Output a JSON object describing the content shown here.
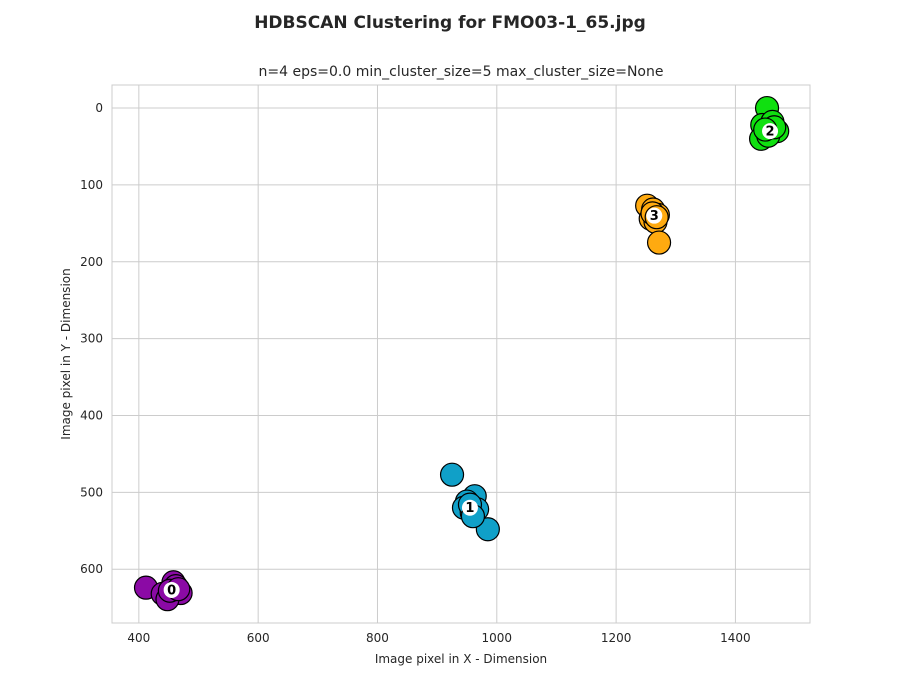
{
  "chart_data": {
    "type": "scatter",
    "title": "HDBSCAN Clustering for FMO03-1_65.jpg",
    "subtitle": "n=4 eps=0.0 min_cluster_size=5 max_cluster_size=None",
    "xlabel": "Image pixel in X - Dimension",
    "ylabel": "Image pixel in Y - Dimension",
    "xlim": [
      355,
      1525
    ],
    "ylim": [
      670,
      -30
    ],
    "y_inverted": true,
    "xticks": [
      400,
      600,
      800,
      1000,
      1200,
      1400
    ],
    "yticks": [
      0,
      100,
      200,
      300,
      400,
      500,
      600
    ],
    "grid": true,
    "series": [
      {
        "label": "0",
        "color": "#8b0aa5",
        "center": [
          455,
          627
        ],
        "points": [
          [
            412,
            624
          ],
          [
            440,
            632
          ],
          [
            458,
            617
          ],
          [
            470,
            631
          ],
          [
            448,
            639
          ],
          [
            462,
            622
          ],
          [
            452,
            628
          ],
          [
            466,
            626
          ]
        ]
      },
      {
        "label": "1",
        "color": "#10a0c8",
        "center": [
          955,
          520
        ],
        "points": [
          [
            925,
            477
          ],
          [
            963,
            505
          ],
          [
            950,
            512
          ],
          [
            945,
            520
          ],
          [
            958,
            526
          ],
          [
            967,
            522
          ],
          [
            985,
            548
          ],
          [
            955,
            516
          ],
          [
            960,
            531
          ]
        ]
      },
      {
        "label": "2",
        "color": "#10e010",
        "center": [
          1458,
          30
        ],
        "points": [
          [
            1453,
            0
          ],
          [
            1445,
            22
          ],
          [
            1462,
            18
          ],
          [
            1470,
            30
          ],
          [
            1443,
            40
          ],
          [
            1455,
            36
          ],
          [
            1465,
            25
          ],
          [
            1450,
            28
          ]
        ]
      },
      {
        "label": "3",
        "color": "#ffaa10",
        "center": [
          1264,
          140
        ],
        "points": [
          [
            1252,
            127
          ],
          [
            1262,
            132
          ],
          [
            1270,
            139
          ],
          [
            1258,
            144
          ],
          [
            1266,
            148
          ],
          [
            1272,
            175
          ],
          [
            1261,
            137
          ],
          [
            1268,
            142
          ]
        ]
      }
    ]
  }
}
